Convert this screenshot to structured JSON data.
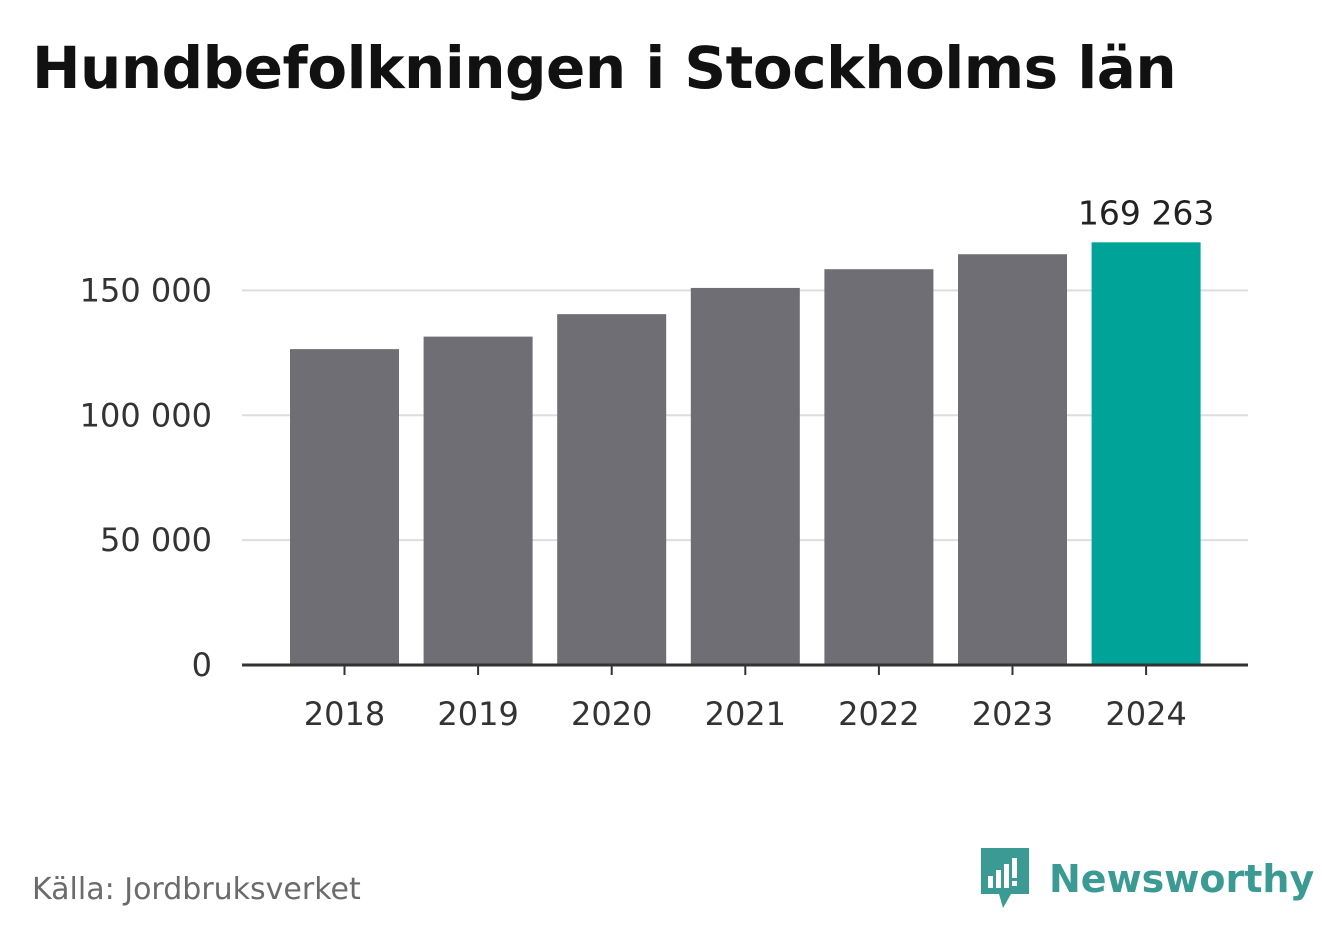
{
  "title": "Hundbefolkningen i Stockholms län",
  "source": "Källa: Jordbruksverket",
  "brand": {
    "name": "Newsworthy",
    "color": "#3b9a93"
  },
  "colors": {
    "bar": "#6f6e75",
    "highlight": "#00a398",
    "grid": "#dddddd",
    "axis": "#333333"
  },
  "chart_data": {
    "type": "bar",
    "categories": [
      "2018",
      "2019",
      "2020",
      "2021",
      "2022",
      "2023",
      "2024"
    ],
    "values": [
      126500,
      131500,
      140500,
      151000,
      158500,
      164500,
      169263
    ],
    "highlight_index": 6,
    "data_labels": {
      "2024": "169 263"
    },
    "yticks": [
      0,
      50000,
      100000,
      150000
    ],
    "ytick_labels": [
      "0",
      "50 000",
      "100 000",
      "150 000"
    ],
    "ylim": [
      0,
      175000
    ],
    "grid": true,
    "xlabel": "",
    "ylabel": ""
  }
}
